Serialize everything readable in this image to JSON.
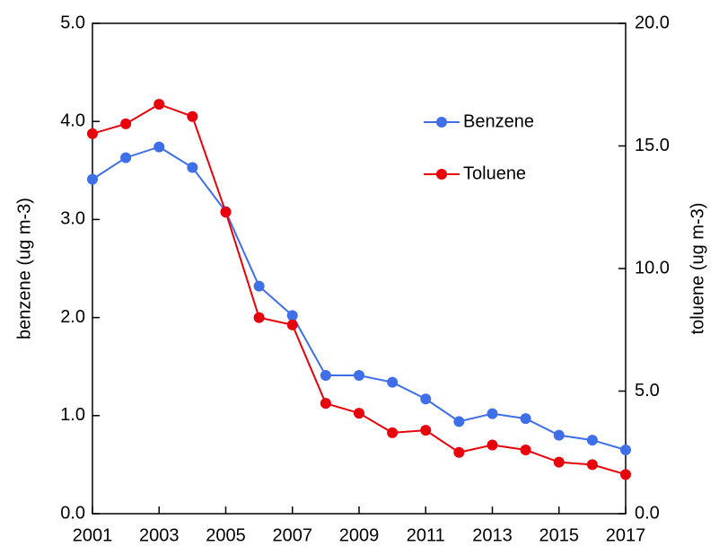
{
  "chart_data": {
    "type": "line",
    "ylabel": "benzene (ug m-3)",
    "y2label": "toluene (ug m-3)",
    "x": [
      2001,
      2002,
      2003,
      2004,
      2005,
      2006,
      2007,
      2008,
      2009,
      2010,
      2011,
      2012,
      2013,
      2014,
      2015,
      2016,
      2017
    ],
    "series": [
      {
        "name": "Benzene",
        "color": "#3f6fe8",
        "values": [
          3.41,
          3.63,
          3.74,
          3.53,
          3.08,
          2.32,
          2.02,
          1.41,
          1.41,
          1.34,
          1.17,
          0.94,
          1.02,
          0.97,
          0.8,
          0.75,
          0.65
        ]
      },
      {
        "name": "Toluene",
        "color": "#e8000b",
        "axis": "y2",
        "values": [
          15.5,
          15.9,
          16.7,
          16.2,
          12.3,
          8.0,
          7.7,
          4.5,
          4.1,
          3.3,
          3.4,
          2.5,
          2.8,
          2.6,
          2.1,
          2.0,
          1.6
        ]
      }
    ],
    "xlim": [
      2001,
      2017
    ],
    "xticks": [
      2001,
      2003,
      2005,
      2007,
      2009,
      2011,
      2013,
      2015,
      2017
    ],
    "ylim": [
      0,
      5
    ],
    "yticks": [
      {
        "value": 0,
        "label": "0.0"
      },
      {
        "value": 1,
        "label": "1.0"
      },
      {
        "value": 2,
        "label": "2.0"
      },
      {
        "value": 3,
        "label": "3.0"
      },
      {
        "value": 4,
        "label": "4.0"
      },
      {
        "value": 5,
        "label": "5.0"
      }
    ],
    "y2lim": [
      0,
      20
    ],
    "y2ticks": [
      {
        "value": 0,
        "label": "0.0"
      },
      {
        "value": 5,
        "label": "5.0"
      },
      {
        "value": 10,
        "label": "10.0"
      },
      {
        "value": 15,
        "label": "15.0"
      },
      {
        "value": 20,
        "label": "20.0"
      }
    ],
    "grid": false
  }
}
